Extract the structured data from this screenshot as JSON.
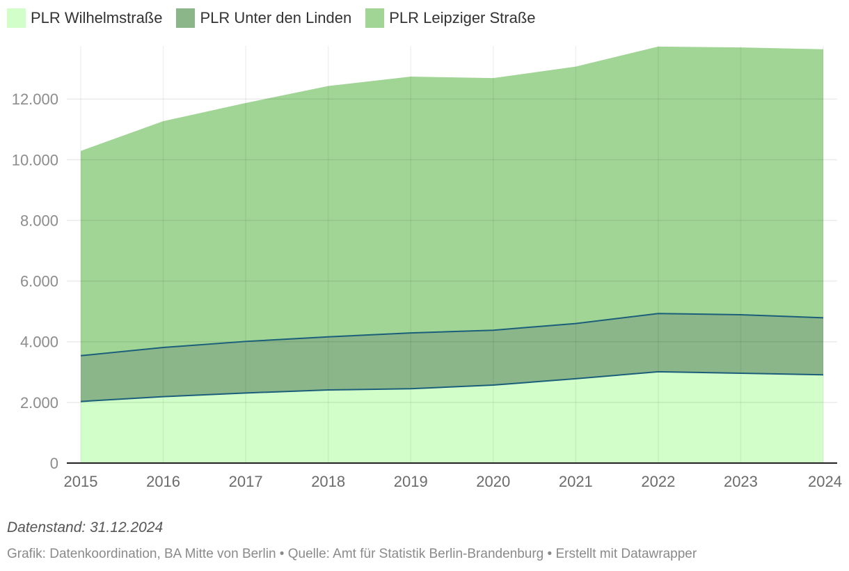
{
  "chart_data": {
    "type": "area",
    "stacked": true,
    "x": [
      "2015",
      "2016",
      "2017",
      "2018",
      "2019",
      "2020",
      "2021",
      "2022",
      "2023",
      "2024"
    ],
    "series": [
      {
        "name": "PLR Wilhelmstraße",
        "color": "#d2feca",
        "values": [
          2030,
          2190,
          2310,
          2410,
          2450,
          2570,
          2780,
          3010,
          2960,
          2910
        ]
      },
      {
        "name": "PLR Unter den Linden",
        "color": "#8ab689",
        "values": [
          1510,
          1620,
          1700,
          1750,
          1840,
          1810,
          1820,
          1920,
          1930,
          1880
        ]
      },
      {
        "name": "PLR Leipziger Straße",
        "color": "#a1d595",
        "values": [
          6750,
          7460,
          7860,
          8270,
          8450,
          8310,
          8470,
          8800,
          8810,
          8850
        ]
      }
    ],
    "yticks": [
      0,
      2000,
      4000,
      6000,
      8000,
      10000,
      12000
    ],
    "ytick_labels": [
      "0",
      "2.000",
      "4.000",
      "6.000",
      "8.000",
      "10.000",
      "12.000"
    ],
    "ylim": [
      0,
      13750
    ],
    "legend_position": "top-left",
    "line_color": "#1b5e7a",
    "grid": true
  },
  "legend": {
    "items": [
      {
        "label": "PLR Wilhelmstraße",
        "color": "#d2feca"
      },
      {
        "label": "PLR Unter den Linden",
        "color": "#8ab689"
      },
      {
        "label": "PLR Leipziger Straße",
        "color": "#a1d595"
      }
    ]
  },
  "footer": {
    "note": "Datenstand: 31.12.2024",
    "credit": "Grafik: Datenkoordination, BA Mitte von Berlin • Quelle: Amt für Statistik Berlin-Brandenburg • Erstellt mit Datawrapper"
  }
}
